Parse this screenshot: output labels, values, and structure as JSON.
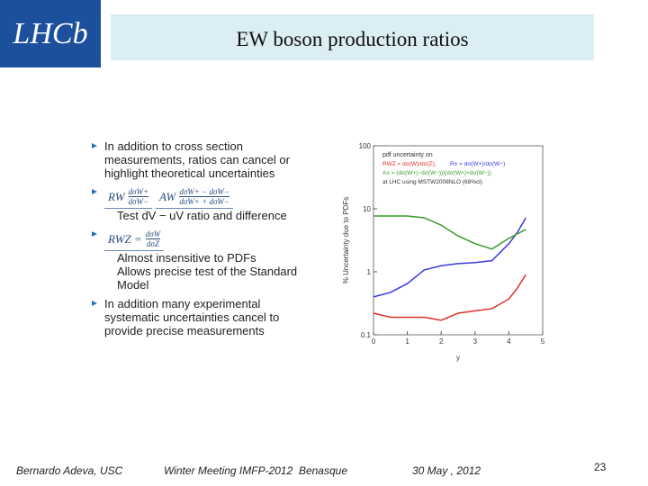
{
  "logo": "LHCb",
  "header": {
    "title": "EW boson production ratios"
  },
  "bullets": [
    {
      "text": "In addition to cross section measurements, ratios can cancel or highlight theoretical uncertainties"
    },
    {
      "formulas": [
        {
          "lhs": "RW",
          "num": "dσW+",
          "den": "dσW−"
        },
        {
          "lhs": "AW",
          "num": "dσW+ − dσW−",
          "den": "dσW+ + dσW−"
        }
      ],
      "notes": [
        "Test dV − uV ratio and difference"
      ]
    },
    {
      "formulas": [
        {
          "lhs": "RWZ =",
          "num": "dσW",
          "den": "dσZ"
        }
      ],
      "notes": [
        "Almost insensitive to PDFs",
        "Allows precise test of the Standard Model"
      ]
    },
    {
      "text": "In addition many experimental systematic uncertainties cancel to provide precise measurements"
    }
  ],
  "figure": {
    "type": "line",
    "ylabel": "% Uncertainty due to PDFs",
    "xlabel": "y",
    "legend_title": "pdf uncertainty on",
    "note": "at LHC using MSTW2008NLO (68%cl)",
    "x": [
      0,
      0.5,
      1,
      1.5,
      2,
      2.5,
      3,
      3.5,
      4,
      4.25,
      4.5
    ],
    "series": [
      {
        "name": "RWZ = dσ(W)/dσ(Z),",
        "color": "#e0302a",
        "values": [
          0.22,
          0.19,
          0.19,
          0.19,
          0.17,
          0.22,
          0.24,
          0.26,
          0.37,
          0.55,
          0.9
        ]
      },
      {
        "name": "R± = dσ(W+)/dσ(W−)",
        "color": "#3a3ae0",
        "values": [
          0.4,
          0.47,
          0.65,
          1.07,
          1.25,
          1.35,
          1.4,
          1.5,
          2.8,
          4.2,
          7.2
        ]
      },
      {
        "name": "A± = (dσ(W+)−dσ(W−))/(dσ(W+)+dσ(W−))",
        "color": "#3a9a2a",
        "values": [
          7.7,
          7.7,
          7.7,
          7.2,
          5.5,
          3.7,
          2.8,
          2.3,
          3.4,
          4.0,
          4.7
        ]
      }
    ],
    "xlim": [
      0,
      5
    ],
    "ylim": [
      0.1,
      100
    ],
    "xticks": [
      0,
      1,
      2,
      3,
      4,
      5
    ],
    "yticks": [
      0.1,
      1,
      10,
      100
    ],
    "log_y": true
  },
  "footer": {
    "author": "Bernardo Adeva, USC",
    "event": "Winter Meeting IMFP-2012  Benasque",
    "date": "30 May , 2012",
    "page": "23"
  }
}
